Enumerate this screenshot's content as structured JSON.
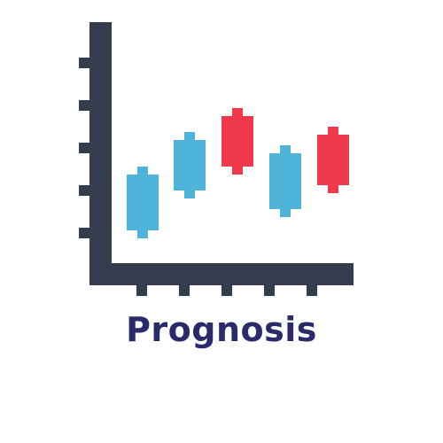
{
  "caption": {
    "text": "Prognosis",
    "color": "#2b2a6b"
  },
  "icon": {
    "name": "candlestick-chart-icon",
    "axis_color": "#353c4d",
    "colors": {
      "up": "#4fb4d9",
      "down": "#f0394b"
    },
    "candles": [
      {
        "direction": "up",
        "open": 1.0,
        "close": 3.1,
        "low": 0.7,
        "high": 3.4
      },
      {
        "direction": "up",
        "open": 2.5,
        "close": 4.4,
        "low": 2.2,
        "high": 4.7
      },
      {
        "direction": "down",
        "open": 5.3,
        "close": 3.4,
        "low": 3.1,
        "high": 5.6
      },
      {
        "direction": "up",
        "open": 1.8,
        "close": 3.9,
        "low": 1.5,
        "high": 4.2
      },
      {
        "direction": "down",
        "open": 4.6,
        "close": 2.7,
        "low": 2.4,
        "high": 4.9
      }
    ]
  }
}
